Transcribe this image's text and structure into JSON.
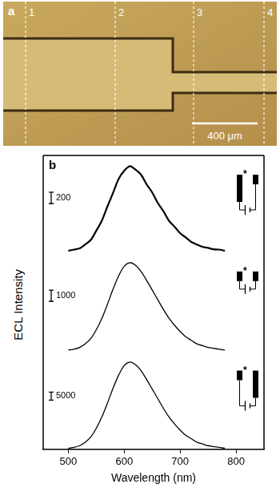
{
  "figure": {
    "panel_a": {
      "letter": "a",
      "line_labels": [
        "1",
        "2",
        "3",
        "4"
      ],
      "scale_bar_label": "400 μm"
    },
    "panel_b_label": "b",
    "ylabel": "ECL Intensity"
  },
  "chart_data": [
    {
      "type": "line",
      "color": "#000000",
      "tick_labels": false,
      "x": [
        500,
        510,
        520,
        530,
        540,
        550,
        560,
        570,
        580,
        590,
        600,
        610,
        620,
        630,
        640,
        650,
        660,
        670,
        680,
        690,
        700,
        710,
        720,
        730,
        740,
        750,
        760,
        770,
        780
      ],
      "values": [
        15,
        35,
        55,
        125,
        205,
        370,
        550,
        800,
        1040,
        1285,
        1430,
        1510,
        1450,
        1360,
        1190,
        1045,
        860,
        715,
        545,
        440,
        325,
        250,
        170,
        125,
        85,
        65,
        40,
        35,
        15
      ],
      "xlim": [
        455,
        850
      ],
      "ylim": [
        0,
        1700
      ],
      "scale_bar": 200,
      "annotation": "*"
    },
    {
      "type": "line",
      "color": "#000000",
      "tick_labels": false,
      "x": [
        500,
        510,
        520,
        530,
        540,
        550,
        560,
        570,
        580,
        590,
        600,
        610,
        620,
        630,
        640,
        650,
        660,
        670,
        680,
        690,
        700,
        710,
        720,
        730,
        740,
        750,
        760,
        770,
        780
      ],
      "values": [
        80,
        160,
        320,
        640,
        1120,
        1920,
        2960,
        4240,
        5600,
        6800,
        7680,
        8000,
        7760,
        7200,
        6400,
        5520,
        4640,
        3760,
        2960,
        2320,
        1760,
        1280,
        960,
        640,
        480,
        320,
        240,
        160,
        80
      ],
      "xlim": [
        455,
        850
      ],
      "ylim": [
        0,
        9000
      ],
      "scale_bar": 1000,
      "annotation": "*"
    },
    {
      "type": "line",
      "color": "#000000",
      "tick_labels": "x",
      "xlabel": "Wavelength (nm)",
      "x": [
        500,
        510,
        520,
        530,
        540,
        550,
        560,
        570,
        580,
        590,
        600,
        610,
        620,
        630,
        640,
        650,
        660,
        670,
        680,
        690,
        700,
        710,
        720,
        730,
        740,
        750,
        760,
        770,
        780
      ],
      "values": [
        550,
        1100,
        2200,
        4400,
        7700,
        13200,
        20350,
        29150,
        38500,
        46750,
        52800,
        55000,
        53350,
        49500,
        44000,
        37950,
        31900,
        25850,
        20350,
        15950,
        12100,
        8800,
        6600,
        4400,
        3300,
        2200,
        1650,
        1100,
        550
      ],
      "xlim": [
        455,
        850
      ],
      "xticks": [
        500,
        600,
        700,
        800
      ],
      "ylim": [
        0,
        62000
      ],
      "scale_bar": 5000,
      "annotation": "*"
    }
  ]
}
